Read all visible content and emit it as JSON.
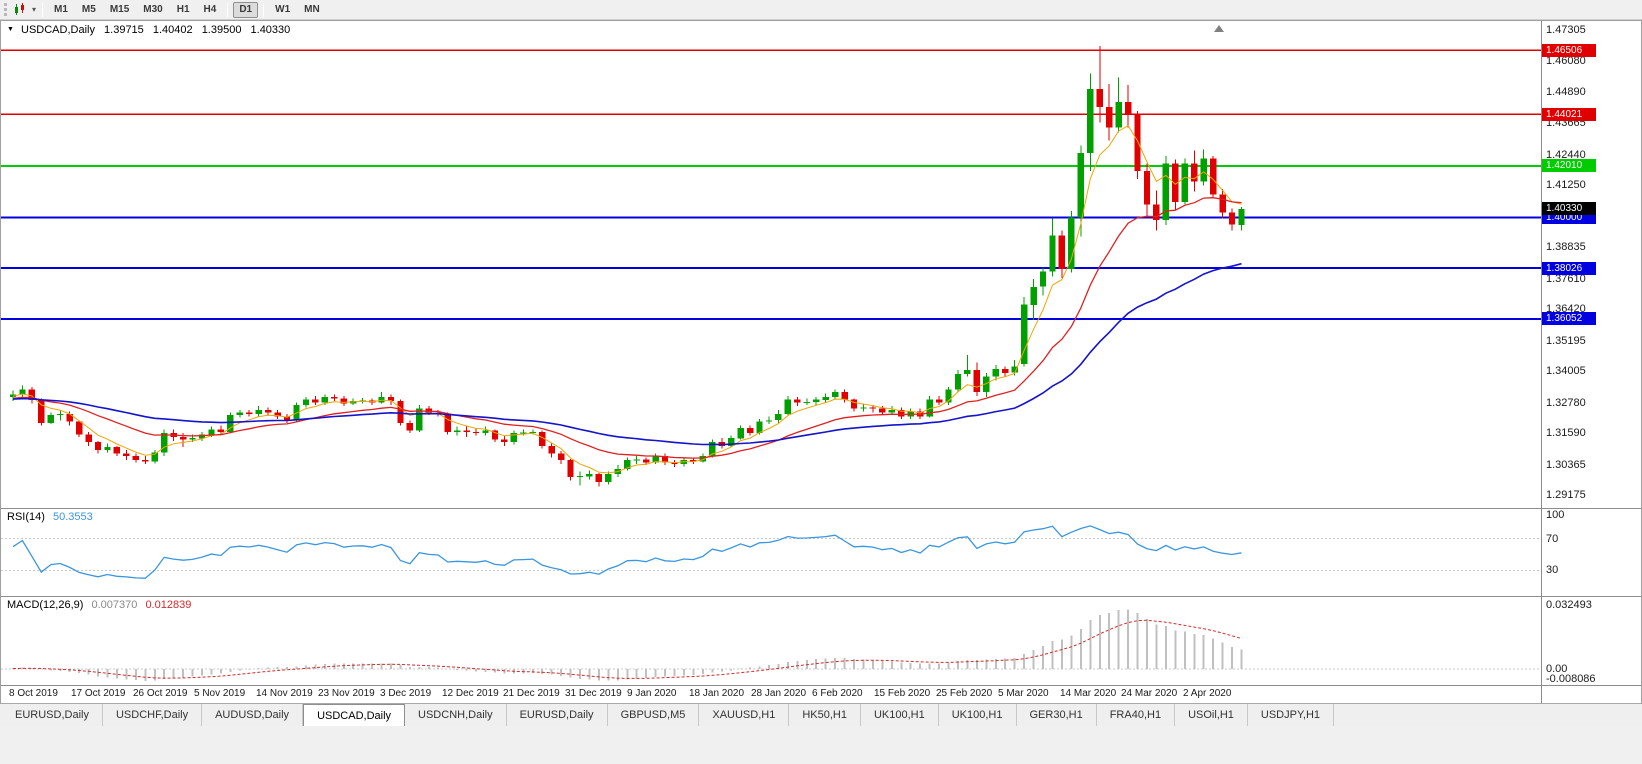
{
  "toolbar": {
    "timeframes": [
      "M1",
      "M5",
      "M15",
      "M30",
      "H1",
      "H4",
      "D1",
      "W1",
      "MN"
    ],
    "active_timeframe": "D1",
    "groups_after": [
      "H4",
      "D1"
    ]
  },
  "chart_title": {
    "symbol": "USDCAD,Daily",
    "open": "1.39715",
    "high": "1.40402",
    "low": "1.39500",
    "close": "1.40330"
  },
  "colors": {
    "up": "#00a000",
    "down": "#e00000",
    "hline_red": "#e00000",
    "hline_green": "#00cc00",
    "hline_blue": "#0000e0",
    "last_price_bg": "#000000",
    "rsi_line": "#3b96e0",
    "macd_hist": "#c0c0c0",
    "macd_signal": "#d42a2a",
    "ma_fast": "#f0a500",
    "ma_mid": "#e02020",
    "ma_slow": "#1414cc"
  },
  "chart_data": {
    "type": "candlestick",
    "symbol": "USDCAD",
    "timeframe": "Daily",
    "y_axis": {
      "top": 1.4765,
      "bottom": 1.288,
      "ticks": [
        "1.47305",
        "1.46080",
        "1.44890",
        "1.43665",
        "1.42440",
        "1.41250",
        "1.40025",
        "1.38835",
        "1.37610",
        "1.36420",
        "1.35195",
        "1.34005",
        "1.32780",
        "1.31590",
        "1.30365",
        "1.29175"
      ]
    },
    "x_axis_labels": [
      "8 Oct 2019",
      "17 Oct 2019",
      "26 Oct 2019",
      "5 Nov 2019",
      "14 Nov 2019",
      "23 Nov 2019",
      "3 Dec 2019",
      "12 Dec 2019",
      "21 Dec 2019",
      "31 Dec 2019",
      "9 Jan 2020",
      "18 Jan 2020",
      "28 Jan 2020",
      "6 Feb 2020",
      "15 Feb 2020",
      "25 Feb 2020",
      "5 Mar 2020",
      "14 Mar 2020",
      "24 Mar 2020",
      "2 Apr 2020"
    ],
    "hlines": [
      {
        "label": "1.46506",
        "price": 1.46506,
        "color_key": "hline_red",
        "width": 1.4
      },
      {
        "label": "1.44021",
        "price": 1.44021,
        "color_key": "hline_red",
        "width": 1.4
      },
      {
        "label": "1.42010",
        "price": 1.4201,
        "color_key": "hline_green",
        "width": 2
      },
      {
        "label": "1.40000",
        "price": 1.4,
        "color_key": "hline_blue",
        "width": 2
      },
      {
        "label": "1.38026",
        "price": 1.38026,
        "color_key": "hline_blue",
        "width": 2
      },
      {
        "label": "1.36052",
        "price": 1.36052,
        "color_key": "hline_blue",
        "width": 2
      }
    ],
    "last_price": {
      "label": "1.40330",
      "price": 1.4033
    },
    "moving_averages": [
      {
        "period": 5,
        "color_key": "ma_fast",
        "width": 1
      },
      {
        "period": 18,
        "color_key": "ma_mid",
        "width": 1.3
      },
      {
        "period": 45,
        "color_key": "ma_slow",
        "width": 1.6
      }
    ],
    "candles": [
      [
        1.33,
        1.3325,
        1.3285,
        1.331
      ],
      [
        1.331,
        1.3345,
        1.33,
        1.333
      ],
      [
        1.333,
        1.334,
        1.3275,
        1.329
      ],
      [
        1.329,
        1.3295,
        1.319,
        1.32
      ],
      [
        1.32,
        1.324,
        1.3195,
        1.323
      ],
      [
        1.323,
        1.325,
        1.321,
        1.3235
      ],
      [
        1.3235,
        1.3245,
        1.319,
        1.3205
      ],
      [
        1.3205,
        1.321,
        1.3145,
        1.3155
      ],
      [
        1.3155,
        1.3165,
        1.311,
        1.3125
      ],
      [
        1.3125,
        1.313,
        1.308,
        1.3095
      ],
      [
        1.3095,
        1.312,
        1.3085,
        1.3105
      ],
      [
        1.3105,
        1.311,
        1.307,
        1.308
      ],
      [
        1.308,
        1.3095,
        1.3055,
        1.307
      ],
      [
        1.307,
        1.308,
        1.3045,
        1.3055
      ],
      [
        1.3055,
        1.307,
        1.304,
        1.305
      ],
      [
        1.305,
        1.3095,
        1.3042,
        1.3085
      ],
      [
        1.3085,
        1.3175,
        1.307,
        1.316
      ],
      [
        1.316,
        1.3175,
        1.313,
        1.3145
      ],
      [
        1.3145,
        1.316,
        1.3105,
        1.3135
      ],
      [
        1.3135,
        1.3155,
        1.3125,
        1.314
      ],
      [
        1.314,
        1.3165,
        1.313,
        1.3155
      ],
      [
        1.3155,
        1.3185,
        1.3145,
        1.3175
      ],
      [
        1.3175,
        1.319,
        1.3155,
        1.3165
      ],
      [
        1.3165,
        1.324,
        1.316,
        1.323
      ],
      [
        1.323,
        1.325,
        1.322,
        1.324
      ],
      [
        1.324,
        1.325,
        1.3225,
        1.3235
      ],
      [
        1.3235,
        1.3265,
        1.3225,
        1.325
      ],
      [
        1.325,
        1.326,
        1.323,
        1.324
      ],
      [
        1.324,
        1.325,
        1.3215,
        1.3225
      ],
      [
        1.3225,
        1.3235,
        1.32,
        1.321
      ],
      [
        1.321,
        1.328,
        1.3205,
        1.327
      ],
      [
        1.327,
        1.33,
        1.326,
        1.329
      ],
      [
        1.329,
        1.3305,
        1.327,
        1.328
      ],
      [
        1.328,
        1.331,
        1.327,
        1.33
      ],
      [
        1.33,
        1.331,
        1.3285,
        1.3295
      ],
      [
        1.3295,
        1.3305,
        1.3265,
        1.3275
      ],
      [
        1.3275,
        1.3295,
        1.327,
        1.3285
      ],
      [
        1.3285,
        1.3297,
        1.3275,
        1.3287
      ],
      [
        1.3287,
        1.3295,
        1.327,
        1.328
      ],
      [
        1.328,
        1.332,
        1.3275,
        1.33
      ],
      [
        1.33,
        1.331,
        1.327,
        1.3285
      ],
      [
        1.3285,
        1.329,
        1.319,
        1.32
      ],
      [
        1.32,
        1.321,
        1.316,
        1.317
      ],
      [
        1.317,
        1.327,
        1.3165,
        1.3255
      ],
      [
        1.3255,
        1.3265,
        1.323,
        1.324
      ],
      [
        1.324,
        1.325,
        1.3225,
        1.3235
      ],
      [
        1.3235,
        1.324,
        1.3155,
        1.3165
      ],
      [
        1.3165,
        1.3185,
        1.315,
        1.317
      ],
      [
        1.317,
        1.319,
        1.3145,
        1.3165
      ],
      [
        1.3165,
        1.318,
        1.315,
        1.316
      ],
      [
        1.316,
        1.3185,
        1.315,
        1.317
      ],
      [
        1.317,
        1.3175,
        1.3125,
        1.3135
      ],
      [
        1.3135,
        1.315,
        1.311,
        1.3125
      ],
      [
        1.3125,
        1.317,
        1.3115,
        1.316
      ],
      [
        1.316,
        1.3175,
        1.315,
        1.3162
      ],
      [
        1.3162,
        1.3175,
        1.3155,
        1.3165
      ],
      [
        1.3165,
        1.317,
        1.31,
        1.311
      ],
      [
        1.311,
        1.312,
        1.3065,
        1.308
      ],
      [
        1.308,
        1.309,
        1.304,
        1.3055
      ],
      [
        1.3055,
        1.306,
        1.2975,
        1.299
      ],
      [
        1.299,
        1.301,
        1.2955,
        1.2992
      ],
      [
        1.2992,
        1.3015,
        1.298,
        1.3
      ],
      [
        1.3,
        1.3005,
        1.2952,
        1.297
      ],
      [
        1.297,
        1.301,
        1.296,
        1.3
      ],
      [
        1.3,
        1.3035,
        1.299,
        1.302
      ],
      [
        1.302,
        1.3065,
        1.3015,
        1.3055
      ],
      [
        1.3055,
        1.307,
        1.304,
        1.3057
      ],
      [
        1.3057,
        1.3065,
        1.3035,
        1.3045
      ],
      [
        1.3045,
        1.308,
        1.304,
        1.307
      ],
      [
        1.307,
        1.308,
        1.3035,
        1.3045
      ],
      [
        1.3045,
        1.3055,
        1.3028,
        1.304
      ],
      [
        1.304,
        1.3065,
        1.303,
        1.3055
      ],
      [
        1.3055,
        1.3065,
        1.304,
        1.305
      ],
      [
        1.305,
        1.308,
        1.3045,
        1.307
      ],
      [
        1.307,
        1.3135,
        1.3065,
        1.3125
      ],
      [
        1.3125,
        1.314,
        1.31,
        1.311
      ],
      [
        1.311,
        1.315,
        1.3105,
        1.314
      ],
      [
        1.314,
        1.319,
        1.3135,
        1.318
      ],
      [
        1.318,
        1.319,
        1.315,
        1.316
      ],
      [
        1.316,
        1.3215,
        1.3155,
        1.3205
      ],
      [
        1.3205,
        1.3225,
        1.3195,
        1.321
      ],
      [
        1.321,
        1.325,
        1.32,
        1.3235
      ],
      [
        1.3235,
        1.3305,
        1.323,
        1.329
      ],
      [
        1.329,
        1.33,
        1.3265,
        1.328
      ],
      [
        1.328,
        1.3295,
        1.327,
        1.3282
      ],
      [
        1.3282,
        1.33,
        1.327,
        1.329
      ],
      [
        1.329,
        1.3315,
        1.328,
        1.33
      ],
      [
        1.33,
        1.333,
        1.329,
        1.332
      ],
      [
        1.332,
        1.333,
        1.328,
        1.329
      ],
      [
        1.329,
        1.3295,
        1.3245,
        1.3255
      ],
      [
        1.3255,
        1.3275,
        1.3245,
        1.326
      ],
      [
        1.326,
        1.327,
        1.324,
        1.3255
      ],
      [
        1.3255,
        1.3265,
        1.323,
        1.324
      ],
      [
        1.324,
        1.3265,
        1.323,
        1.325
      ],
      [
        1.325,
        1.326,
        1.3215,
        1.3225
      ],
      [
        1.3225,
        1.3255,
        1.3215,
        1.3245
      ],
      [
        1.3245,
        1.3255,
        1.3215,
        1.3225
      ],
      [
        1.3225,
        1.3305,
        1.322,
        1.329
      ],
      [
        1.329,
        1.3305,
        1.327,
        1.328
      ],
      [
        1.328,
        1.334,
        1.327,
        1.333
      ],
      [
        1.333,
        1.3405,
        1.332,
        1.339
      ],
      [
        1.339,
        1.3465,
        1.338,
        1.3405
      ],
      [
        1.3405,
        1.3435,
        1.3305,
        1.332
      ],
      [
        1.332,
        1.3395,
        1.33,
        1.338
      ],
      [
        1.338,
        1.3425,
        1.3365,
        1.341
      ],
      [
        1.341,
        1.342,
        1.338,
        1.3395
      ],
      [
        1.3395,
        1.3445,
        1.3385,
        1.342
      ],
      [
        1.343,
        1.369,
        1.342,
        1.366
      ],
      [
        1.366,
        1.376,
        1.36,
        1.373
      ],
      [
        1.373,
        1.3805,
        1.3695,
        1.379
      ],
      [
        1.379,
        1.3995,
        1.377,
        1.393
      ],
      [
        1.393,
        1.395,
        1.3765,
        1.38
      ],
      [
        1.38,
        1.4025,
        1.3785,
        1.4
      ],
      [
        1.4,
        1.428,
        1.3925,
        1.425
      ],
      [
        1.425,
        1.456,
        1.418,
        1.45
      ],
      [
        1.45,
        1.4668,
        1.437,
        1.443
      ],
      [
        1.443,
        1.452,
        1.43,
        1.435
      ],
      [
        1.435,
        1.4545,
        1.433,
        1.445
      ],
      [
        1.445,
        1.4515,
        1.435,
        1.44
      ],
      [
        1.44,
        1.4415,
        1.415,
        1.418
      ],
      [
        1.418,
        1.421,
        1.4005,
        1.405
      ],
      [
        1.405,
        1.4105,
        1.395,
        1.399
      ],
      [
        1.399,
        1.424,
        1.397,
        1.421
      ],
      [
        1.421,
        1.4225,
        1.403,
        1.406
      ],
      [
        1.406,
        1.423,
        1.405,
        1.421
      ],
      [
        1.421,
        1.426,
        1.41,
        1.414
      ],
      [
        1.414,
        1.4265,
        1.4125,
        1.423
      ],
      [
        1.423,
        1.424,
        1.4075,
        1.409
      ],
      [
        1.409,
        1.411,
        1.3995,
        1.402
      ],
      [
        1.402,
        1.4035,
        1.395,
        1.3972
      ],
      [
        1.39715,
        1.40402,
        1.395,
        1.4033
      ]
    ]
  },
  "indicators": {
    "rsi": {
      "label": "RSI(14)",
      "value": "50.3553",
      "period": 14,
      "ticks": [
        {
          "text": "100",
          "v": 100
        },
        {
          "text": "70",
          "v": 70
        },
        {
          "text": "30",
          "v": 30
        }
      ],
      "levels": [
        70,
        30
      ],
      "scale": {
        "max": 107.5,
        "min": -2.5
      }
    },
    "macd": {
      "label": "MACD(12,26,9)",
      "value_main": "0.007370",
      "value_signal": "0.012839",
      "fast": 12,
      "slow": 26,
      "signal": 9,
      "ticks": [
        {
          "text": "0.032493",
          "v": 0.032493
        },
        {
          "text": "0.00",
          "v": 0
        },
        {
          "text": "-0.008086",
          "v": -0.008086
        }
      ],
      "scale": {
        "max": 0.0366,
        "min": -0.00825
      }
    }
  },
  "tabs": {
    "active_index": 3,
    "items": [
      "EURUSD,Daily",
      "USDCHF,Daily",
      "AUDUSD,Daily",
      "USDCAD,Daily",
      "USDCNH,Daily",
      "EURUSD,Daily",
      "GBPUSD,M5",
      "XAUUSD,H1",
      "HK50,H1",
      "UK100,H1",
      "UK100,H1",
      "GER30,H1",
      "FRA40,H1",
      "USOil,H1",
      "USDJPY,H1"
    ]
  }
}
